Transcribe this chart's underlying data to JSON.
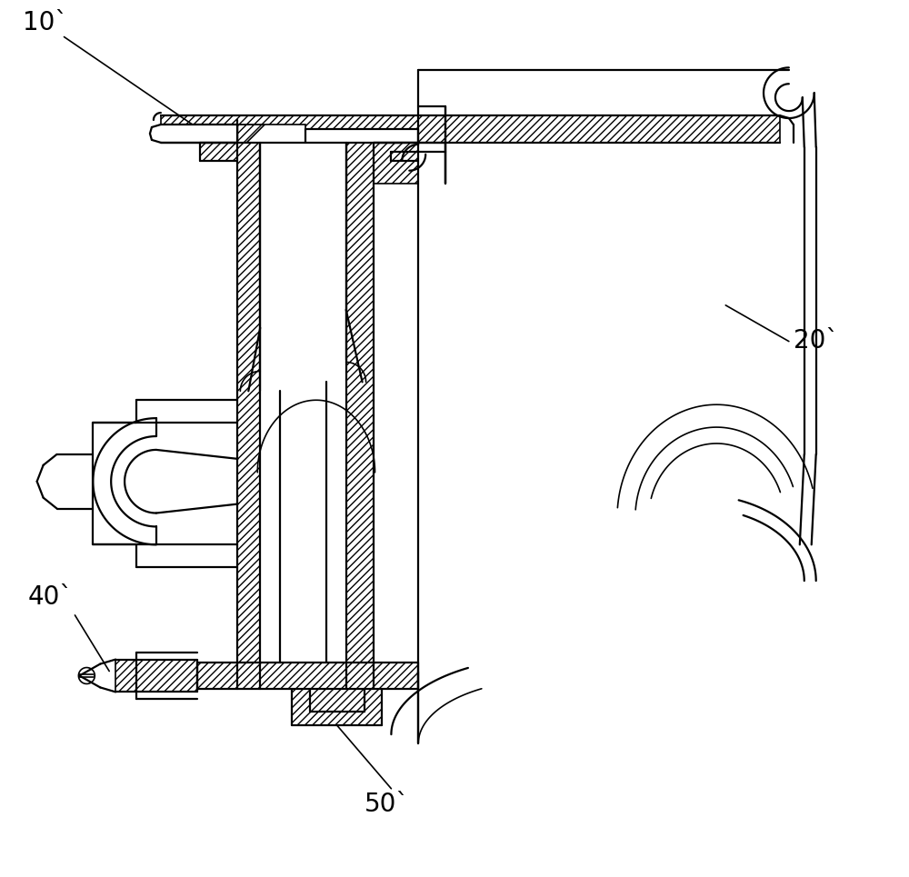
{
  "bg_color": "#ffffff",
  "line_color": "#000000",
  "labels": {
    "10": "10`",
    "20": "20`",
    "40": "40`",
    "50": "50`"
  },
  "figsize": [
    10.0,
    9.65
  ],
  "dpi": 100
}
